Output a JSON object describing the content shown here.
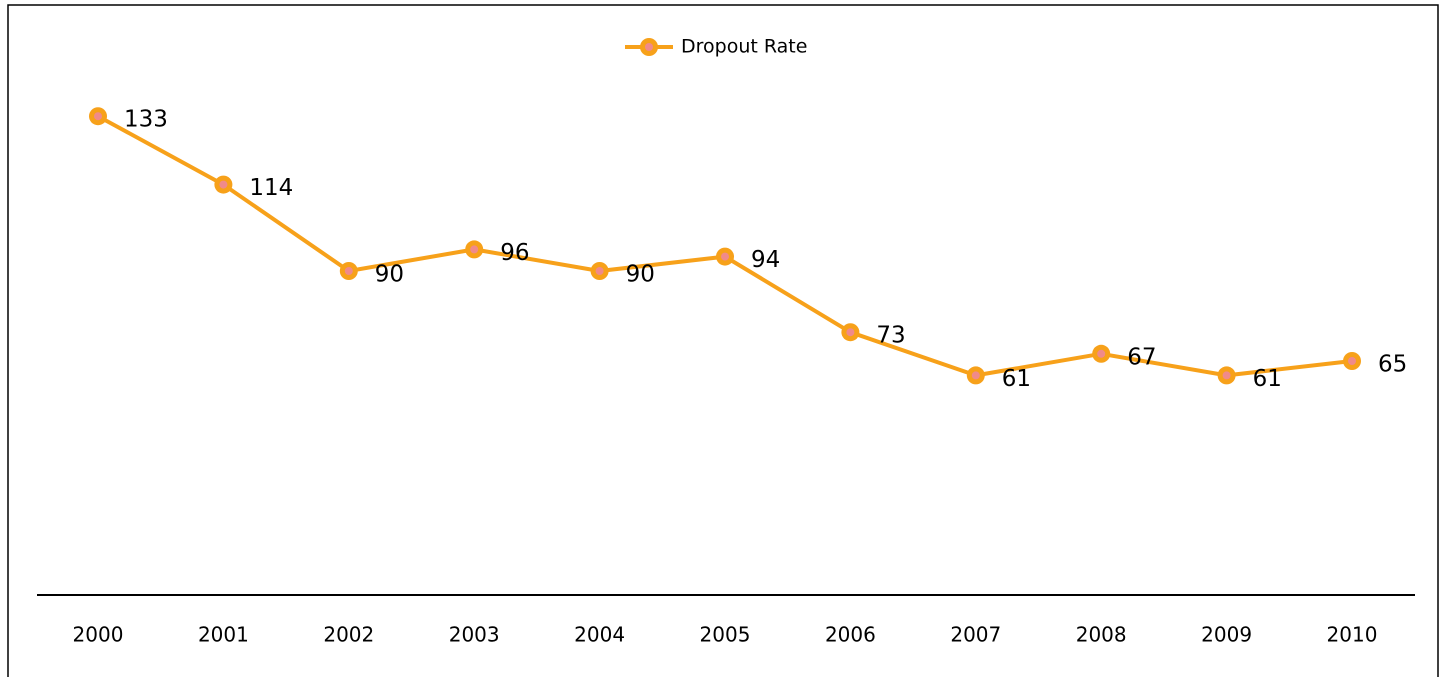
{
  "chart_data": {
    "type": "line",
    "categories": [
      "2000",
      "2001",
      "2002",
      "2003",
      "2004",
      "2005",
      "2006",
      "2007",
      "2008",
      "2009",
      "2010"
    ],
    "series": [
      {
        "name": "Dropout Rate",
        "color": "#f7a11a",
        "marker_color": "#f08a8a",
        "values": [
          133,
          114,
          90,
          96,
          90,
          94,
          73,
          61,
          67,
          61,
          65
        ]
      }
    ],
    "legend": "top"
  }
}
